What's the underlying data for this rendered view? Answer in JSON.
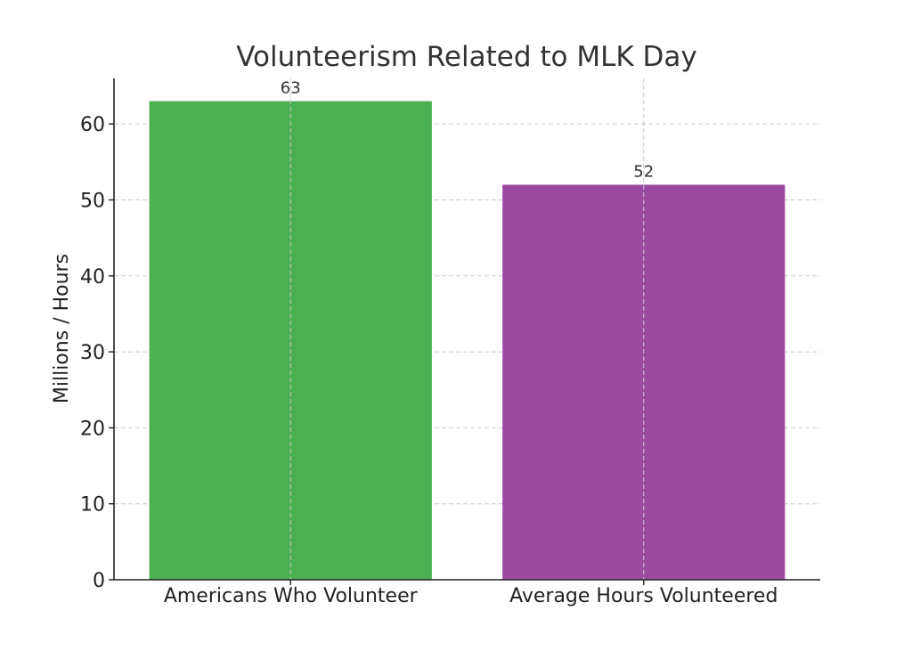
{
  "chart_data": {
    "type": "bar",
    "title": "Volunteerism Related to MLK Day",
    "xlabel": "",
    "ylabel": "Millions / Hours",
    "categories": [
      "Americans Who Volunteer",
      "Average Hours Volunteered"
    ],
    "values": [
      63,
      52
    ],
    "colors": [
      "#4caf50",
      "#9c4aa1"
    ],
    "data_labels": [
      "63",
      "52"
    ],
    "ylim": [
      0,
      66
    ],
    "yticks": [
      0,
      10,
      20,
      30,
      40,
      50,
      60
    ],
    "grid": true,
    "legend": "none"
  }
}
